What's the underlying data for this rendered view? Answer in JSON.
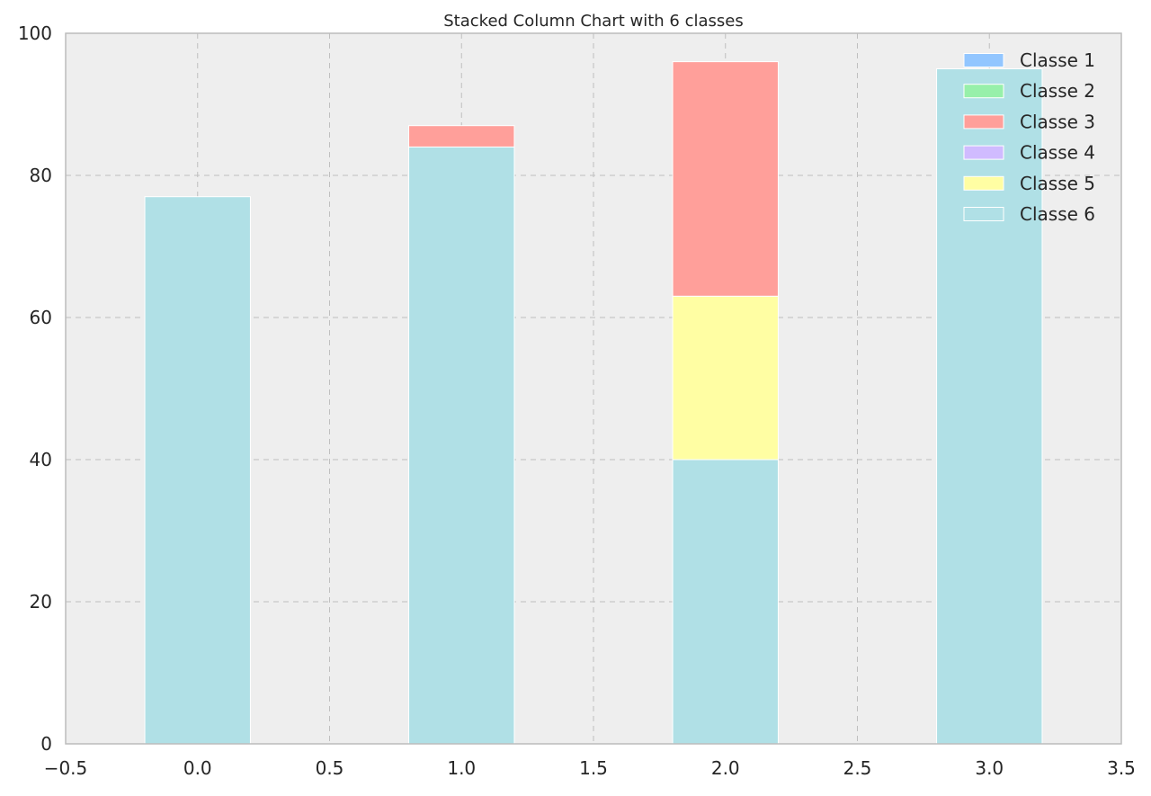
{
  "chart_data": {
    "type": "bar",
    "stacked": true,
    "title": "Stacked Column Chart with 6 classes",
    "xlabel": "",
    "ylabel": "",
    "x": [
      0,
      1,
      2,
      3
    ],
    "xlim": [
      -0.5,
      3.5
    ],
    "ylim": [
      0,
      100
    ],
    "xticks": [
      "−0.5",
      "0.0",
      "0.5",
      "1.0",
      "1.5",
      "2.0",
      "2.5",
      "3.0",
      "3.5"
    ],
    "yticks": [
      "0",
      "20",
      "40",
      "60",
      "80",
      "100"
    ],
    "grid": true,
    "legend_position": "top-right",
    "bar_width": 0.4,
    "stack_order": [
      "Classe 6",
      "Classe 5",
      "Classe 4",
      "Classe 3",
      "Classe 2",
      "Classe 1"
    ],
    "series": [
      {
        "name": "Classe 1",
        "color": "#92c6ff",
        "values": [
          0,
          0,
          0,
          0
        ]
      },
      {
        "name": "Classe 2",
        "color": "#97f0aa",
        "values": [
          0,
          0,
          0,
          0
        ]
      },
      {
        "name": "Classe 3",
        "color": "#ff9f9a",
        "values": [
          0,
          3,
          33,
          0
        ]
      },
      {
        "name": "Classe 4",
        "color": "#d0bbff",
        "values": [
          0,
          0,
          0,
          0
        ]
      },
      {
        "name": "Classe 5",
        "color": "#fffea3",
        "values": [
          0,
          0,
          23,
          0
        ]
      },
      {
        "name": "Classe 6",
        "color": "#b0e0e6",
        "values": [
          77,
          84,
          40,
          95
        ]
      }
    ]
  },
  "colors": {
    "plot_background": "#eeeeee",
    "grid": "#bfbfbf",
    "axes_border": "#bcbcbc"
  }
}
